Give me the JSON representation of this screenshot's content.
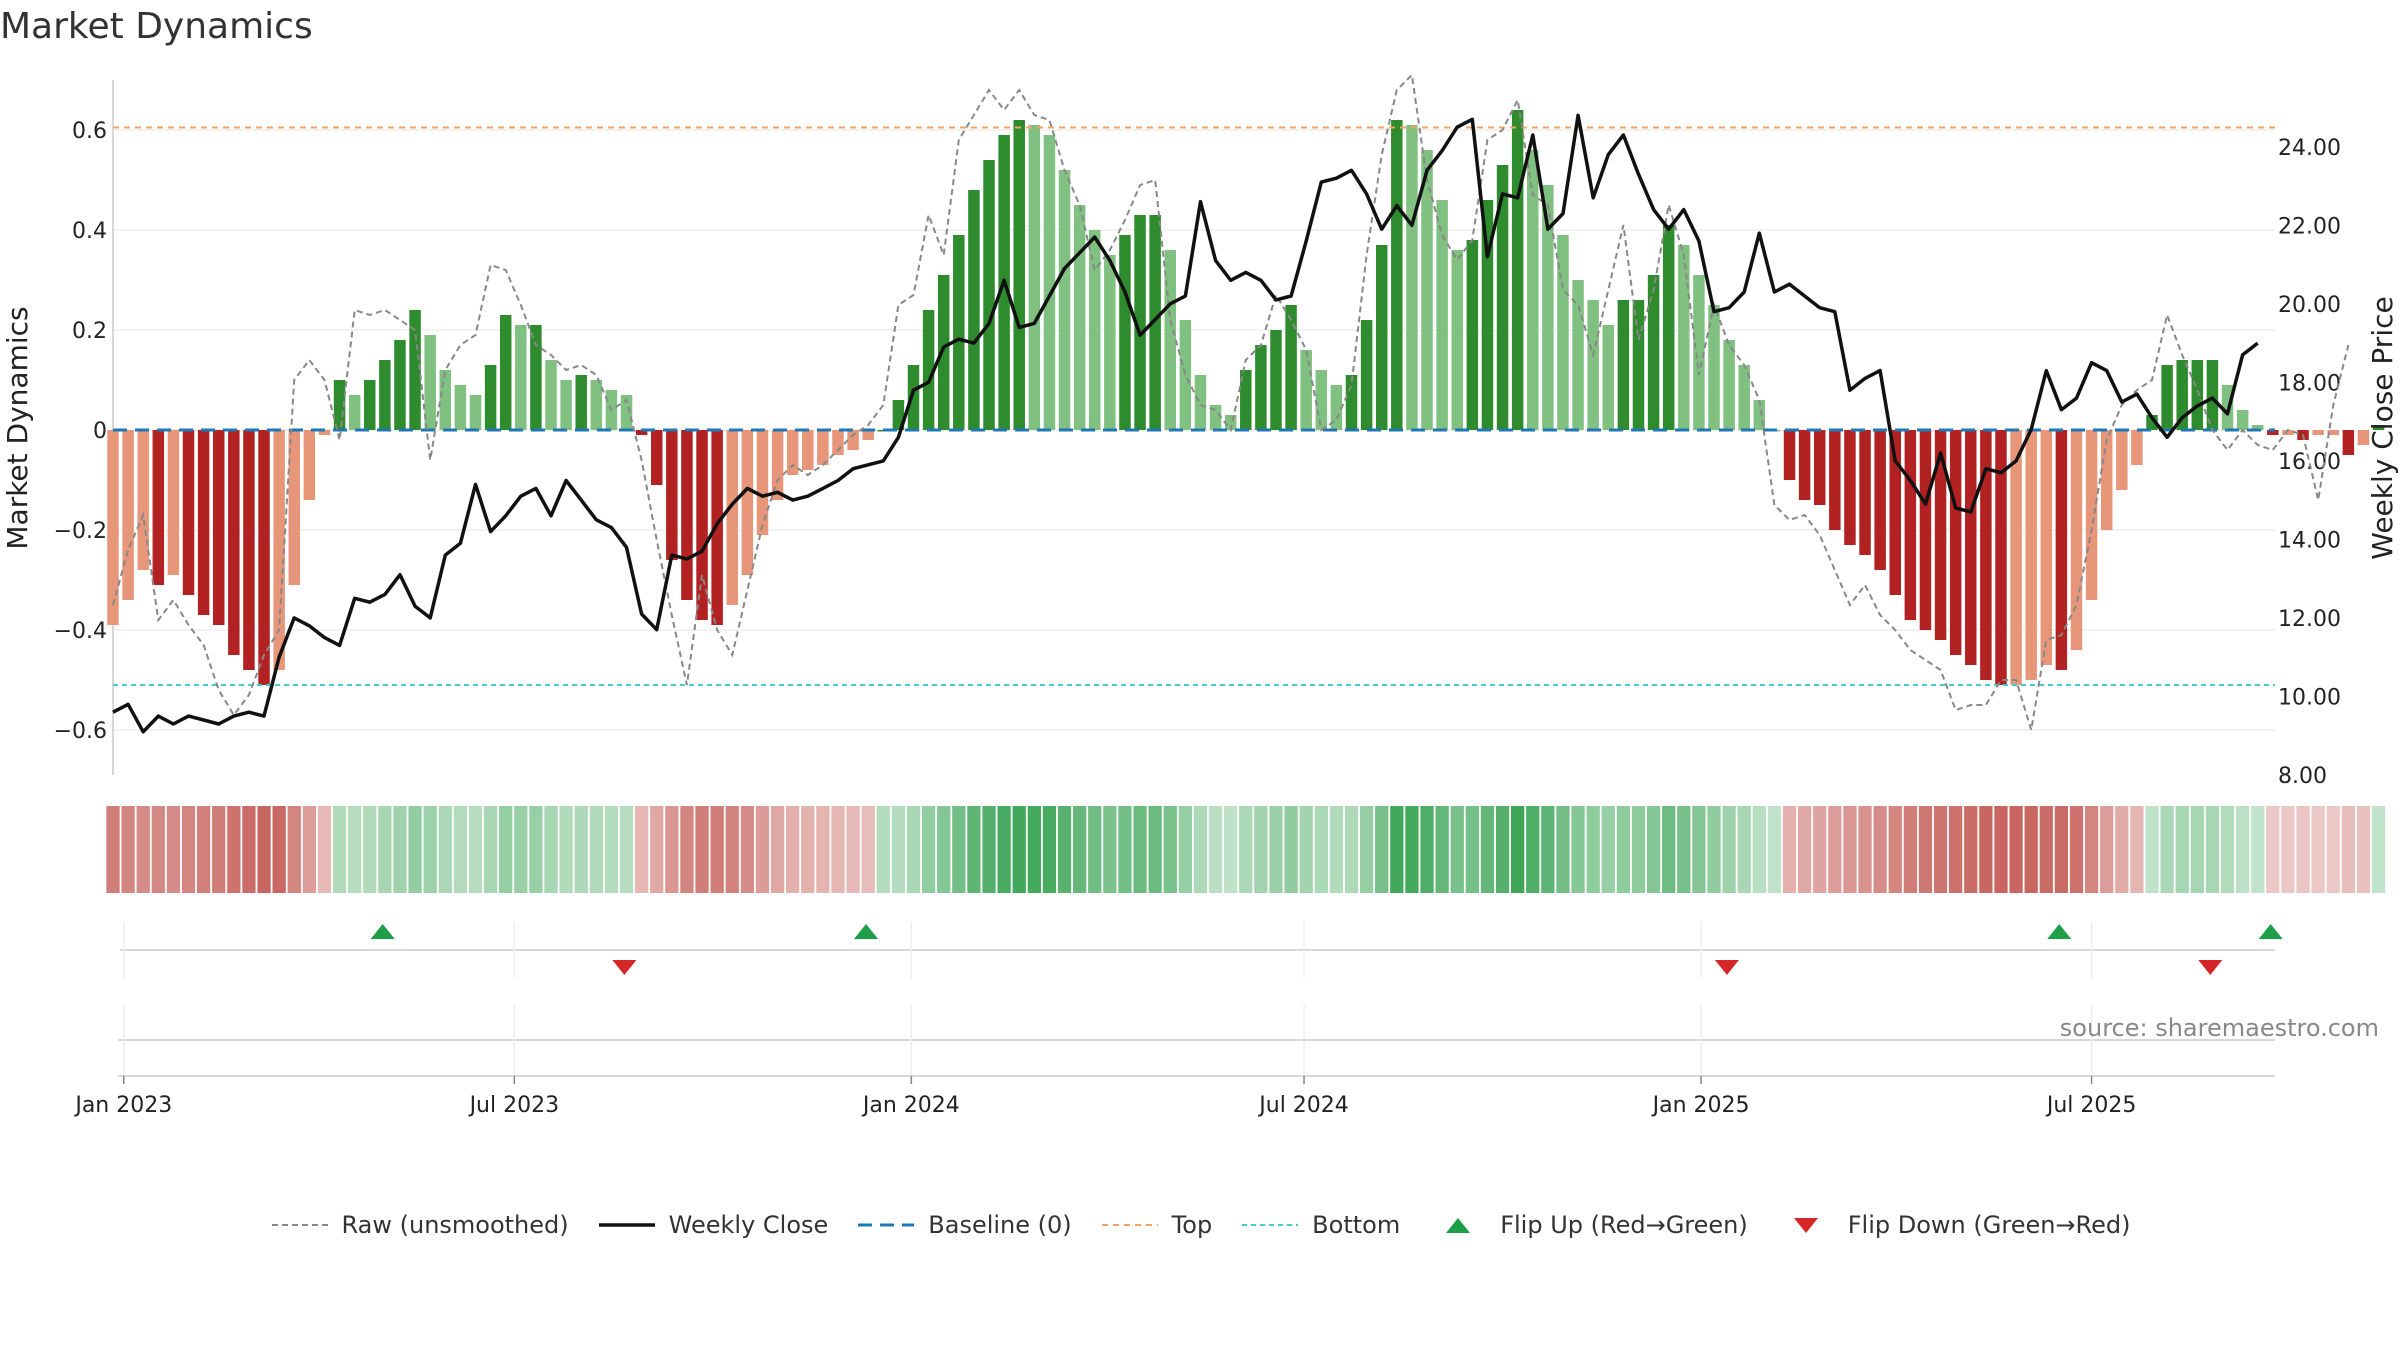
{
  "title": "Market Dynamics",
  "source": "source: sharemaestro.com",
  "chart_data": {
    "type": "bar",
    "title": "Market Dynamics",
    "ylabel": "Market Dynamics",
    "y2label": "Weekly Close Price",
    "ylim": [
      -0.69,
      0.7
    ],
    "y2lim": [
      8.0,
      25.7
    ],
    "yticks": [
      -0.6,
      -0.4,
      -0.2,
      0,
      0.2,
      0.4,
      0.6
    ],
    "yticklabels": [
      "−0.6",
      "−0.4",
      "−0.2",
      "0",
      "0.2",
      "0.4",
      "0.6"
    ],
    "y2ticks": [
      8,
      10,
      12,
      14,
      16,
      18,
      20,
      22,
      24
    ],
    "y2ticklabels": [
      "8.00",
      "10.00",
      "12.00",
      "14.00",
      "16.00",
      "18.00",
      "20.00",
      "22.00",
      "24.00"
    ],
    "xdomain": [
      "2022-12-27",
      "2025-09-24"
    ],
    "xticks": [
      "2023-01-01",
      "2023-07-01",
      "2024-01-01",
      "2024-07-01",
      "2025-01-01",
      "2025-07-01"
    ],
    "xticklabels": [
      "Jan 2023",
      "Jul 2023",
      "Jan 2024",
      "Jul 2024",
      "Jan 2025",
      "Jul 2025"
    ],
    "start_week": "2022-12-27",
    "top_level": 0.605,
    "bottom_level": -0.51,
    "baseline": 0,
    "grid": true,
    "legend_position": "bottom-center",
    "colors": {
      "strong_green": "#2e8b2e",
      "light_green": "#80c080",
      "strong_red": "#b22222",
      "light_red": "#e8967a",
      "close": "#111111",
      "raw": "#888888",
      "baseline": "#1f77b4",
      "top": "#f4a460",
      "bottom": "#40d0d0",
      "flip_up": "#1e9e48",
      "flip_down": "#d62728"
    },
    "series": [
      {
        "name": "Market Dynamics",
        "values": [
          -0.39,
          -0.34,
          -0.28,
          -0.31,
          -0.29,
          -0.33,
          -0.37,
          -0.39,
          -0.45,
          -0.48,
          -0.51,
          -0.48,
          -0.31,
          -0.14,
          -0.01,
          0.1,
          0.07,
          0.1,
          0.14,
          0.18,
          0.24,
          0.19,
          0.12,
          0.09,
          0.07,
          0.13,
          0.23,
          0.21,
          0.21,
          0.14,
          0.1,
          0.11,
          0.1,
          0.08,
          0.07,
          -0.01,
          -0.11,
          -0.26,
          -0.34,
          -0.38,
          -0.39,
          -0.35,
          -0.29,
          -0.21,
          -0.14,
          -0.09,
          -0.08,
          -0.07,
          -0.05,
          -0.04,
          -0.02,
          0.0,
          0.06,
          0.13,
          0.24,
          0.31,
          0.39,
          0.48,
          0.54,
          0.59,
          0.62,
          0.61,
          0.59,
          0.52,
          0.45,
          0.4,
          0.35,
          0.39,
          0.43,
          0.43,
          0.36,
          0.22,
          0.11,
          0.05,
          0.03,
          0.12,
          0.17,
          0.2,
          0.25,
          0.16,
          0.12,
          0.09,
          0.11,
          0.22,
          0.37,
          0.62,
          0.61,
          0.56,
          0.46,
          0.36,
          0.38,
          0.46,
          0.53,
          0.64,
          0.56,
          0.49,
          0.39,
          0.3,
          0.26,
          0.21,
          0.26,
          0.26,
          0.31,
          0.41,
          0.37,
          0.31,
          0.25,
          0.18,
          0.13,
          0.06,
          0.0,
          -0.1,
          -0.14,
          -0.15,
          -0.2,
          -0.23,
          -0.25,
          -0.28,
          -0.33,
          -0.38,
          -0.4,
          -0.42,
          -0.45,
          -0.47,
          -0.5,
          -0.51,
          -0.51,
          -0.5,
          -0.47,
          -0.48,
          -0.44,
          -0.34,
          -0.2,
          -0.12,
          -0.07,
          0.03,
          0.13,
          0.14,
          0.14,
          0.14,
          0.09,
          0.04,
          0.01,
          -0.01,
          -0.01,
          -0.02,
          -0.01,
          -0.01,
          -0.05,
          -0.03,
          0.01
        ]
      },
      {
        "name": "Raw (unsmoothed)",
        "values": [
          -0.35,
          -0.24,
          -0.17,
          -0.38,
          -0.34,
          -0.39,
          -0.43,
          -0.52,
          -0.57,
          -0.53,
          -0.45,
          -0.4,
          0.1,
          0.14,
          0.1,
          -0.02,
          0.24,
          0.23,
          0.24,
          0.22,
          0.2,
          -0.06,
          0.12,
          0.17,
          0.19,
          0.33,
          0.32,
          0.25,
          0.17,
          0.15,
          0.12,
          0.13,
          0.11,
          0.04,
          0.06,
          -0.06,
          -0.22,
          -0.37,
          -0.51,
          -0.29,
          -0.4,
          -0.45,
          -0.32,
          -0.19,
          -0.1,
          -0.07,
          -0.09,
          -0.07,
          -0.04,
          -0.01,
          0.01,
          0.05,
          0.25,
          0.27,
          0.43,
          0.35,
          0.58,
          0.63,
          0.68,
          0.64,
          0.68,
          0.63,
          0.62,
          0.52,
          0.45,
          0.32,
          0.36,
          0.42,
          0.49,
          0.5,
          0.22,
          0.11,
          0.05,
          0.04,
          0.0,
          0.14,
          0.17,
          0.27,
          0.22,
          0.16,
          0.0,
          0.02,
          0.09,
          0.35,
          0.55,
          0.68,
          0.71,
          0.5,
          0.39,
          0.34,
          0.38,
          0.58,
          0.6,
          0.66,
          0.47,
          0.45,
          0.28,
          0.25,
          0.15,
          0.28,
          0.41,
          0.18,
          0.28,
          0.45,
          0.35,
          0.11,
          0.25,
          0.17,
          0.13,
          0.06,
          -0.15,
          -0.18,
          -0.17,
          -0.21,
          -0.28,
          -0.35,
          -0.31,
          -0.37,
          -0.4,
          -0.44,
          -0.46,
          -0.48,
          -0.56,
          -0.55,
          -0.55,
          -0.5,
          -0.5,
          -0.6,
          -0.42,
          -0.41,
          -0.35,
          -0.2,
          -0.02,
          0.05,
          0.08,
          0.1,
          0.23,
          0.15,
          0.08,
          0.0,
          -0.04,
          0.0,
          -0.03,
          -0.04,
          0.0,
          -0.01,
          -0.14,
          0.05,
          0.17
        ]
      },
      {
        "name": "Weekly Close",
        "axis": "right",
        "values": [
          9.6,
          9.8,
          9.1,
          9.5,
          9.3,
          9.5,
          9.4,
          9.3,
          9.5,
          9.6,
          9.5,
          11.0,
          12.0,
          11.8,
          11.5,
          11.3,
          12.5,
          12.4,
          12.6,
          13.1,
          12.3,
          12.0,
          13.6,
          13.9,
          15.4,
          14.2,
          14.6,
          15.1,
          15.3,
          14.6,
          15.5,
          15.0,
          14.5,
          14.3,
          13.8,
          12.1,
          11.7,
          13.6,
          13.5,
          13.7,
          14.4,
          14.9,
          15.3,
          15.1,
          15.2,
          15.0,
          15.1,
          15.3,
          15.5,
          15.8,
          15.9,
          16.0,
          16.6,
          17.8,
          18.0,
          18.9,
          19.1,
          19.0,
          19.5,
          20.6,
          19.4,
          19.5,
          20.2,
          20.9,
          21.3,
          21.7,
          21.1,
          20.3,
          19.2,
          19.6,
          20.0,
          20.2,
          22.6,
          21.1,
          20.6,
          20.8,
          20.6,
          20.1,
          20.2,
          21.6,
          23.1,
          23.2,
          23.4,
          22.8,
          21.9,
          22.5,
          22.0,
          23.4,
          23.9,
          24.5,
          24.7,
          21.2,
          22.8,
          22.7,
          24.3,
          21.9,
          22.3,
          24.8,
          22.7,
          23.8,
          24.3,
          23.3,
          22.4,
          21.9,
          22.4,
          21.6,
          19.8,
          19.9,
          20.3,
          21.8,
          20.3,
          20.5,
          20.2,
          19.9,
          19.8,
          17.8,
          18.1,
          18.3,
          16.0,
          15.5,
          14.9,
          16.2,
          14.8,
          14.7,
          15.8,
          15.7,
          16.0,
          16.8,
          18.3,
          17.3,
          17.6,
          18.5,
          18.3,
          17.5,
          17.7,
          17.1,
          16.6,
          17.1,
          17.4,
          17.6,
          17.2,
          18.7,
          19.0
        ]
      },
      {
        "name": "Baseline (0)"
      },
      {
        "name": "Top"
      },
      {
        "name": "Bottom"
      },
      {
        "name": "Flip Up (Red→Green)",
        "dates": [
          "2023-05-01",
          "2023-12-11",
          "2025-06-16",
          "2025-09-22"
        ]
      },
      {
        "name": "Flip Down (Green→Red)",
        "dates": [
          "2023-08-21",
          "2025-01-13",
          "2025-08-25"
        ]
      }
    ],
    "strength": [
      0.75,
      0.7,
      0.66,
      0.68,
      0.66,
      0.7,
      0.73,
      0.75,
      0.8,
      0.84,
      0.88,
      0.86,
      0.7,
      0.56,
      0.4,
      0.38,
      0.35,
      0.38,
      0.42,
      0.46,
      0.52,
      0.47,
      0.4,
      0.37,
      0.35,
      0.41,
      0.51,
      0.49,
      0.49,
      0.42,
      0.38,
      0.39,
      0.38,
      0.36,
      0.35,
      0.42,
      0.5,
      0.6,
      0.7,
      0.74,
      0.75,
      0.71,
      0.65,
      0.57,
      0.5,
      0.45,
      0.44,
      0.43,
      0.41,
      0.4,
      0.38,
      0.36,
      0.36,
      0.41,
      0.52,
      0.59,
      0.67,
      0.76,
      0.82,
      0.87,
      0.9,
      0.89,
      0.87,
      0.8,
      0.73,
      0.68,
      0.63,
      0.67,
      0.71,
      0.71,
      0.64,
      0.5,
      0.39,
      0.33,
      0.31,
      0.4,
      0.45,
      0.48,
      0.53,
      0.44,
      0.4,
      0.37,
      0.39,
      0.5,
      0.65,
      0.9,
      0.89,
      0.84,
      0.74,
      0.64,
      0.66,
      0.74,
      0.81,
      0.92,
      0.84,
      0.77,
      0.67,
      0.58,
      0.54,
      0.49,
      0.54,
      0.54,
      0.59,
      0.69,
      0.65,
      0.59,
      0.53,
      0.46,
      0.41,
      0.34,
      0.3,
      0.45,
      0.5,
      0.52,
      0.56,
      0.6,
      0.62,
      0.65,
      0.7,
      0.75,
      0.77,
      0.79,
      0.82,
      0.84,
      0.87,
      0.88,
      0.88,
      0.87,
      0.84,
      0.85,
      0.81,
      0.7,
      0.56,
      0.48,
      0.42,
      0.31,
      0.41,
      0.42,
      0.42,
      0.42,
      0.37,
      0.32,
      0.29,
      0.32,
      0.32,
      0.33,
      0.32,
      0.32,
      0.37,
      0.35,
      0.29
    ]
  },
  "legend": [
    {
      "label": "Raw (unsmoothed)",
      "kind": "raw"
    },
    {
      "label": "Weekly Close",
      "kind": "close"
    },
    {
      "label": "Baseline (0)",
      "kind": "baseline"
    },
    {
      "label": "Top",
      "kind": "top"
    },
    {
      "label": "Bottom",
      "kind": "bottom"
    },
    {
      "label": "Flip Up (Red→Green)",
      "kind": "up"
    },
    {
      "label": "Flip Down (Green→Red)",
      "kind": "down"
    }
  ]
}
